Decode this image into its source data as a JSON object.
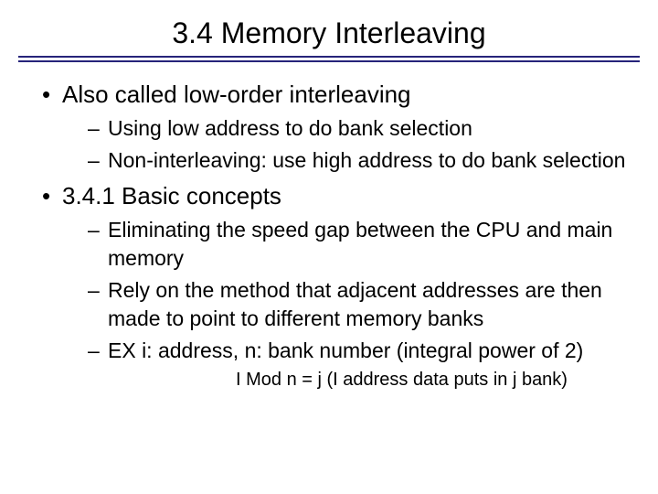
{
  "colors": {
    "background": "#ffffff",
    "text": "#000000",
    "rule": "#26247a"
  },
  "typography": {
    "title_fontsize": 32,
    "l1_fontsize": 26,
    "l2_fontsize": 23,
    "formula_fontsize": 20,
    "font_family": "Arial"
  },
  "title": "3.4 Memory Interleaving",
  "bullets": {
    "item1": {
      "text": "Also called low-order interleaving",
      "sub1": "Using low address to do bank selection",
      "sub2": "Non-interleaving: use high address to do bank selection"
    },
    "item2": {
      "text": "3.4.1 Basic concepts",
      "sub1": "Eliminating the speed gap between the CPU and main memory",
      "sub2": "Rely on the method that adjacent addresses are then made to point to different memory banks",
      "sub3": "EX i: address, n: bank number (integral power of 2)",
      "formula": "I Mod n = j (I address data puts in j bank)"
    }
  }
}
